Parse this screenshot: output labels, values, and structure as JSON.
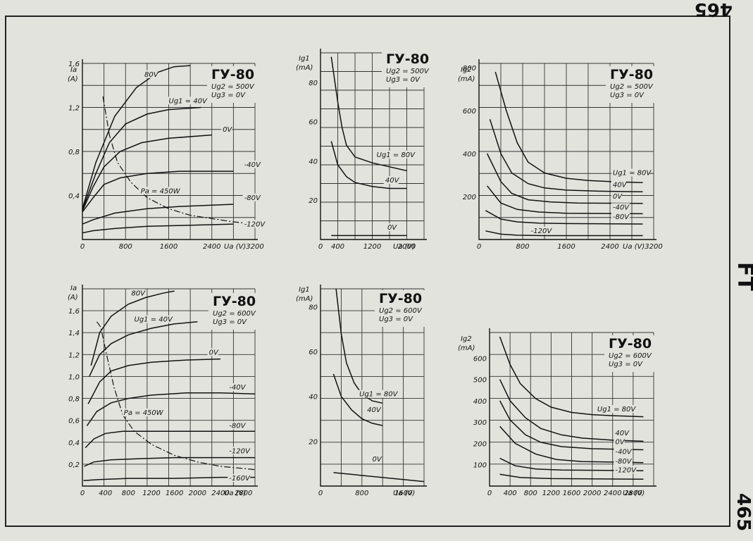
{
  "page": {
    "side_top": "465",
    "side_mid": "FT",
    "side_bot": "465"
  },
  "chart_data": [
    {
      "type": "line",
      "title": "ГУ-80",
      "conditions": [
        "Ug2 = 500V",
        "Ug3 = 0V"
      ],
      "ylabel": "Ia (A)",
      "xlabel": "Ua (V)",
      "xlim": [
        0,
        3200
      ],
      "ylim": [
        0,
        1.6
      ],
      "x_ticks": [
        "0",
        "800",
        "1600",
        "2400",
        "3200"
      ],
      "y_ticks": [
        "0,4",
        "0,8",
        "1,2",
        "1,6"
      ],
      "y_tick_values": [
        0.4,
        0.8,
        1.2,
        1.6
      ],
      "series": [
        {
          "name": "80V",
          "x": [
            0,
            250,
            600,
            1000,
            1400,
            1700,
            2000
          ],
          "y": [
            0.28,
            0.7,
            1.12,
            1.38,
            1.52,
            1.57,
            1.58
          ]
        },
        {
          "name": "Ug1 = 40V",
          "x": [
            0,
            250,
            500,
            800,
            1200,
            1600,
            2200
          ],
          "y": [
            0.27,
            0.6,
            0.88,
            1.05,
            1.14,
            1.18,
            1.2
          ]
        },
        {
          "name": "0V",
          "x": [
            0,
            200,
            400,
            700,
            1100,
            1600,
            2400
          ],
          "y": [
            0.26,
            0.48,
            0.66,
            0.8,
            0.88,
            0.92,
            0.95
          ]
        },
        {
          "name": "-40V",
          "x": [
            0,
            200,
            400,
            700,
            1200,
            1800,
            2800
          ],
          "y": [
            0.25,
            0.38,
            0.5,
            0.56,
            0.6,
            0.62,
            0.62
          ]
        },
        {
          "name": "-80V",
          "x": [
            0,
            200,
            600,
            1200,
            1800,
            2800
          ],
          "y": [
            0.14,
            0.18,
            0.24,
            0.28,
            0.3,
            0.32
          ]
        },
        {
          "name": "-120V",
          "x": [
            0,
            200,
            600,
            1200,
            2000,
            2800
          ],
          "y": [
            0.06,
            0.08,
            0.1,
            0.12,
            0.13,
            0.14
          ]
        },
        {
          "name": "Pa = 450W",
          "style": "dashdot",
          "x": [
            380,
            500,
            650,
            900,
            1200,
            1600,
            2000,
            2400,
            2800,
            3200
          ],
          "y": [
            1.3,
            0.95,
            0.7,
            0.52,
            0.38,
            0.28,
            0.22,
            0.19,
            0.16,
            0.14
          ]
        }
      ]
    },
    {
      "type": "line",
      "title": "ГУ-80",
      "conditions": [
        "Ug2 = 500V",
        "Ug3 = 0V"
      ],
      "ylabel": "Ig1 (mA)",
      "xlabel": "Ua (V)",
      "xlim": [
        0,
        2400
      ],
      "ylim": [
        0,
        95
      ],
      "x_ticks": [
        "0",
        "400",
        "1200",
        "2000"
      ],
      "x_tick_values": [
        0,
        400,
        1200,
        2000
      ],
      "y_ticks": [
        "20",
        "40",
        "60",
        "80"
      ],
      "y_tick_values": [
        20,
        40,
        60,
        80
      ],
      "series": [
        {
          "name": "Ug1 = 80V",
          "x": [
            250,
            400,
            500,
            600,
            800,
            1200,
            1600,
            2000
          ],
          "y": [
            93,
            70,
            57,
            48,
            42,
            39,
            37,
            35
          ]
        },
        {
          "name": "40V",
          "x": [
            250,
            400,
            600,
            800,
            1200,
            1600,
            2000
          ],
          "y": [
            50,
            38,
            32,
            29,
            27,
            26,
            26
          ]
        },
        {
          "name": "0V",
          "x": [
            250,
            2000
          ],
          "y": [
            2,
            2
          ]
        }
      ]
    },
    {
      "type": "line",
      "title": "ГУ-80",
      "conditions": [
        "Ug2 = 500V",
        "Ug3 = 0V"
      ],
      "ylabel": "Ig2 (mA)",
      "xlabel": "Ua (V)",
      "xlim": [
        0,
        3200
      ],
      "ylim": [
        0,
        820
      ],
      "x_ticks": [
        "0",
        "800",
        "1600",
        "2400",
        "3200"
      ],
      "y_ticks": [
        "200",
        "400",
        "600",
        "800"
      ],
      "y_tick_values": [
        200,
        400,
        600,
        800
      ],
      "series": [
        {
          "name": "Ug1 = 80V",
          "x": [
            300,
            500,
            700,
            900,
            1200,
            1600,
            2000,
            2400,
            3000
          ],
          "y": [
            780,
            600,
            450,
            360,
            310,
            285,
            275,
            270,
            265
          ]
        },
        {
          "name": "40V",
          "x": [
            200,
            400,
            600,
            900,
            1200,
            1600,
            2200,
            3000
          ],
          "y": [
            560,
            400,
            310,
            260,
            240,
            230,
            225,
            222
          ]
        },
        {
          "name": "0V",
          "x": [
            150,
            400,
            600,
            900,
            1300,
            1800,
            3000
          ],
          "y": [
            400,
            270,
            215,
            185,
            175,
            170,
            168
          ]
        },
        {
          "name": "-40V",
          "x": [
            150,
            400,
            700,
            1100,
            1600,
            3000
          ],
          "y": [
            250,
            170,
            140,
            128,
            122,
            120
          ]
        },
        {
          "name": "-80V",
          "x": [
            120,
            400,
            700,
            1100,
            1600,
            3000
          ],
          "y": [
            135,
            95,
            82,
            76,
            74,
            72
          ]
        },
        {
          "name": "-120V",
          "x": [
            120,
            400,
            700,
            1200,
            3000
          ],
          "y": [
            40,
            25,
            20,
            18,
            18
          ]
        }
      ]
    },
    {
      "type": "line",
      "title": "ГУ-80",
      "conditions": [
        "Ug2 = 600V",
        "Ug3 = 0V"
      ],
      "ylabel": "Ia (A)",
      "xlabel": "Ua (V)",
      "xlim": [
        0,
        3000
      ],
      "ylim": [
        0,
        1.8
      ],
      "x_ticks": [
        "0",
        "400",
        "800",
        "1200",
        "1600",
        "2000",
        "2400",
        "2800"
      ],
      "x_tick_values": [
        0,
        400,
        800,
        1200,
        1600,
        2000,
        2400,
        2800
      ],
      "y_ticks": [
        "0,2",
        "0,4",
        "0,6",
        "0,8",
        "1,0",
        "1,2",
        "1,4",
        "1,6"
      ],
      "y_tick_values": [
        0.2,
        0.4,
        0.6,
        0.8,
        1.0,
        1.2,
        1.4,
        1.6
      ],
      "series": [
        {
          "name": "80V",
          "x": [
            150,
            300,
            500,
            800,
            1100,
            1400,
            1600
          ],
          "y": [
            1.1,
            1.4,
            1.55,
            1.66,
            1.72,
            1.76,
            1.78
          ]
        },
        {
          "name": "Ug1 = 40V",
          "x": [
            120,
            300,
            500,
            800,
            1200,
            1600,
            2000
          ],
          "y": [
            1.0,
            1.2,
            1.3,
            1.38,
            1.44,
            1.48,
            1.5
          ]
        },
        {
          "name": "0V",
          "x": [
            100,
            300,
            500,
            800,
            1200,
            1800,
            2400
          ],
          "y": [
            0.75,
            0.95,
            1.05,
            1.1,
            1.13,
            1.15,
            1.16
          ]
        },
        {
          "name": "-40V",
          "x": [
            80,
            250,
            500,
            800,
            1200,
            1800,
            2400,
            3000
          ],
          "y": [
            0.55,
            0.68,
            0.76,
            0.8,
            0.83,
            0.85,
            0.85,
            0.84
          ]
        },
        {
          "name": "-80V",
          "x": [
            50,
            200,
            400,
            700,
            1000,
            1600,
            2400,
            3000
          ],
          "y": [
            0.35,
            0.43,
            0.48,
            0.5,
            0.5,
            0.5,
            0.5,
            0.5
          ]
        },
        {
          "name": "-120V",
          "x": [
            30,
            200,
            500,
            1000,
            1600,
            2400,
            3000
          ],
          "y": [
            0.18,
            0.22,
            0.24,
            0.25,
            0.26,
            0.26,
            0.26
          ]
        },
        {
          "name": "-160V",
          "x": [
            20,
            300,
            800,
            1600,
            2400,
            3000
          ],
          "y": [
            0.05,
            0.06,
            0.07,
            0.07,
            0.08,
            0.08
          ]
        },
        {
          "name": "Pa = 450W",
          "style": "dashdot",
          "x": [
            250,
            320,
            420,
            550,
            700,
            900,
            1200,
            1600,
            2000,
            2400,
            2800,
            3000
          ],
          "y": [
            1.5,
            1.45,
            1.2,
            0.9,
            0.65,
            0.5,
            0.38,
            0.28,
            0.22,
            0.18,
            0.16,
            0.15
          ]
        }
      ]
    },
    {
      "type": "line",
      "title": "ГУ-80",
      "conditions": [
        "Ug2 = 600V",
        "Ug3 = 0V"
      ],
      "ylabel": "Ig1 (mA)",
      "xlabel": "Ua (V)",
      "xlim": [
        0,
        2000
      ],
      "ylim": [
        0,
        88
      ],
      "x_ticks": [
        "0",
        "800",
        "1600"
      ],
      "x_tick_values": [
        0,
        800,
        1600
      ],
      "y_ticks": [
        "20",
        "40",
        "60",
        "80"
      ],
      "y_tick_values": [
        20,
        40,
        60,
        80
      ],
      "series": [
        {
          "name": "Ug1 = 80V",
          "x": [
            300,
            400,
            500,
            650,
            800,
            1000,
            1200
          ],
          "y": [
            88,
            68,
            55,
            46,
            41,
            38,
            37
          ]
        },
        {
          "name": "40V",
          "x": [
            250,
            400,
            600,
            800,
            1000,
            1200
          ],
          "y": [
            50,
            40,
            34,
            30,
            28,
            27
          ]
        },
        {
          "name": "0V",
          "x": [
            250,
            2000
          ],
          "y": [
            6,
            2
          ]
        }
      ]
    },
    {
      "type": "line",
      "title": "ГУ-80",
      "conditions": [
        "Ug2 = 600V",
        "Ug3 = 0V"
      ],
      "ylabel": "Ig2 (mA)",
      "xlabel": "Ua (V)",
      "xlim": [
        0,
        3200
      ],
      "ylim": [
        0,
        720
      ],
      "x_ticks": [
        "0",
        "400",
        "800",
        "1200",
        "1600",
        "2000",
        "2400",
        "2800"
      ],
      "x_tick_values": [
        0,
        400,
        800,
        1200,
        1600,
        2000,
        2400,
        2800
      ],
      "y_ticks": [
        "100",
        "200",
        "300",
        "400",
        "500",
        "600"
      ],
      "y_tick_values": [
        100,
        200,
        300,
        400,
        500,
        600
      ],
      "series": [
        {
          "name": "Ug1 = 80V",
          "x": [
            200,
            400,
            600,
            900,
            1200,
            1600,
            2000,
            2400,
            3000
          ],
          "y": [
            700,
            570,
            480,
            410,
            370,
            345,
            335,
            330,
            325
          ]
        },
        {
          "name": "40V",
          "x": [
            200,
            400,
            700,
            1000,
            1400,
            1800,
            2400,
            3000
          ],
          "y": [
            500,
            400,
            320,
            270,
            240,
            225,
            215,
            210
          ]
        },
        {
          "name": "0V",
          "x": [
            200,
            400,
            700,
            1000,
            1400,
            2000,
            3000
          ],
          "y": [
            400,
            310,
            240,
            205,
            185,
            175,
            170
          ]
        },
        {
          "name": "-40V",
          "x": [
            200,
            500,
            900,
            1300,
            1800,
            3000
          ],
          "y": [
            280,
            200,
            150,
            125,
            115,
            110
          ]
        },
        {
          "name": "-80V",
          "x": [
            200,
            500,
            900,
            1400,
            3000
          ],
          "y": [
            130,
            95,
            80,
            75,
            72
          ]
        },
        {
          "name": "-120V",
          "x": [
            200,
            600,
            1200,
            3000
          ],
          "y": [
            55,
            40,
            35,
            32
          ]
        }
      ]
    }
  ]
}
